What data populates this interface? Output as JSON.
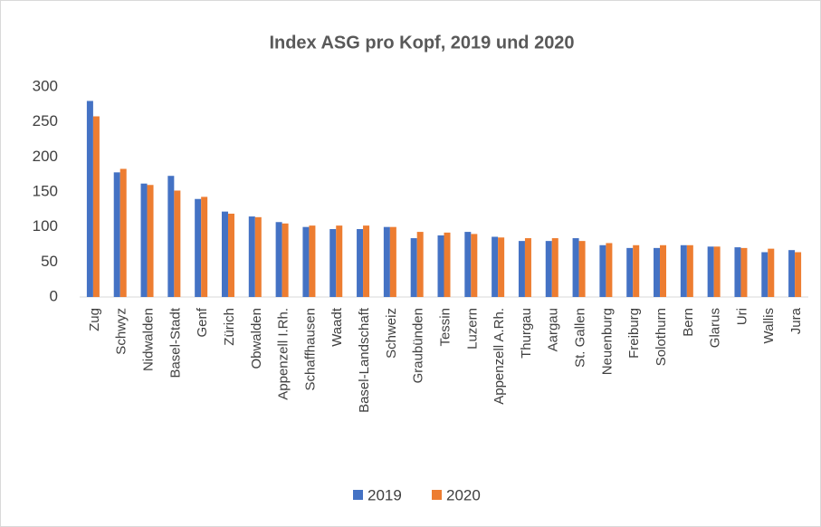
{
  "chart_data": {
    "type": "bar",
    "title": "Index ASG pro Kopf, 2019 und 2020",
    "categories": [
      "Zug",
      "Schwyz",
      "Nidwalden",
      "Basel-Stadt",
      "Genf",
      "Zürich",
      "Obwalden",
      "Appenzell I.Rh.",
      "Schaffhausen",
      "Waadt",
      "Basel-Landschaft",
      "Schweiz",
      "Graubünden",
      "Tessin",
      "Luzern",
      "Appenzell A.Rh.",
      "Thurgau",
      "Aargau",
      "St. Gallen",
      "Neuenburg",
      "Freiburg",
      "Solothurn",
      "Bern",
      "Glarus",
      "Uri",
      "Wallis",
      "Jura"
    ],
    "series": [
      {
        "name": "2019",
        "color": "#4472c4",
        "values": [
          280,
          178,
          162,
          173,
          140,
          122,
          115,
          107,
          100,
          97,
          97,
          100,
          84,
          88,
          93,
          86,
          80,
          80,
          84,
          74,
          70,
          70,
          74,
          72,
          71,
          64,
          67
        ]
      },
      {
        "name": "2020",
        "color": "#ed7d31",
        "values": [
          258,
          183,
          160,
          152,
          143,
          119,
          114,
          105,
          102,
          102,
          102,
          100,
          93,
          92,
          90,
          85,
          84,
          84,
          80,
          77,
          74,
          74,
          74,
          72,
          70,
          69,
          64
        ]
      }
    ],
    "ylim": [
      0,
      300
    ],
    "yticks": [
      0,
      50,
      100,
      150,
      200,
      250,
      300
    ],
    "grid": false,
    "legend": "bottom"
  }
}
